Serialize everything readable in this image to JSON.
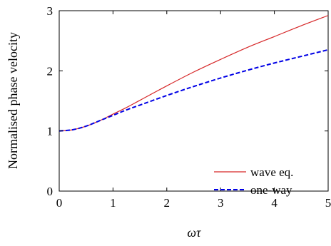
{
  "chart_data": {
    "type": "line",
    "title": "",
    "xlabel": "ωτ",
    "ylabel": "Normalised phase velocity",
    "xlim": [
      0,
      5
    ],
    "ylim": [
      0,
      3
    ],
    "xticks": [
      0,
      1,
      2,
      3,
      4,
      5
    ],
    "yticks": [
      0,
      1,
      2,
      3
    ],
    "grid": false,
    "legend_position": "bottom-right",
    "series": [
      {
        "name": "wave eq.",
        "color": "#d62728",
        "style": "solid",
        "x": [
          0,
          0.25,
          0.5,
          0.75,
          1.0,
          1.25,
          1.5,
          2.0,
          2.5,
          3.0,
          3.5,
          4.0,
          4.5,
          5.0
        ],
        "y": [
          1.0,
          1.02,
          1.08,
          1.17,
          1.28,
          1.39,
          1.51,
          1.75,
          1.98,
          2.19,
          2.39,
          2.57,
          2.75,
          2.92
        ]
      },
      {
        "name": "one-way",
        "color": "#0000e6",
        "style": "dashed",
        "x": [
          0,
          0.25,
          0.5,
          0.75,
          1.0,
          1.25,
          1.5,
          2.0,
          2.5,
          3.0,
          3.5,
          4.0,
          4.5,
          5.0
        ],
        "y": [
          1.0,
          1.02,
          1.08,
          1.17,
          1.26,
          1.35,
          1.43,
          1.59,
          1.74,
          1.88,
          2.01,
          2.13,
          2.24,
          2.35
        ]
      }
    ]
  }
}
